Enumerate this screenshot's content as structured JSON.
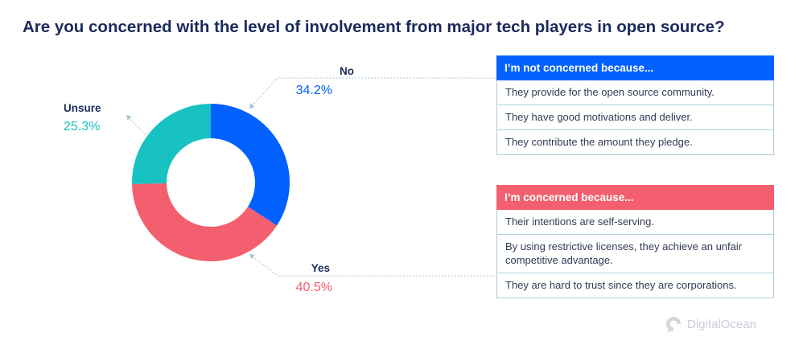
{
  "chart_data": {
    "type": "pie",
    "title": "Are you concerned with the level of involvement from major tech players in open source?",
    "donut": true,
    "slices": [
      {
        "label": "No",
        "value": 34.2,
        "display": "34.2%",
        "color": "#0061ff"
      },
      {
        "label": "Yes",
        "value": 40.5,
        "display": "40.5%",
        "color": "#f35f6e"
      },
      {
        "label": "Unsure",
        "value": 25.3,
        "display": "25.3%",
        "color": "#18c1c2"
      }
    ]
  },
  "boxes": [
    {
      "heading": "I’m not concerned because...",
      "color": "#0061ff",
      "rows": [
        "They provide for the open source community.",
        "They have good motivations and deliver.",
        "They contribute the amount they pledge."
      ]
    },
    {
      "heading": "I’m concerned because...",
      "color": "#f35f6e",
      "rows": [
        "Their intentions are self-serving.",
        "By using restrictive licenses, they achieve an unfair competitive advantage.",
        "They are hard to trust since they are corporations."
      ]
    }
  ],
  "branding": {
    "name": "DigitalOcean",
    "icon": "digitalocean-logo-icon"
  }
}
